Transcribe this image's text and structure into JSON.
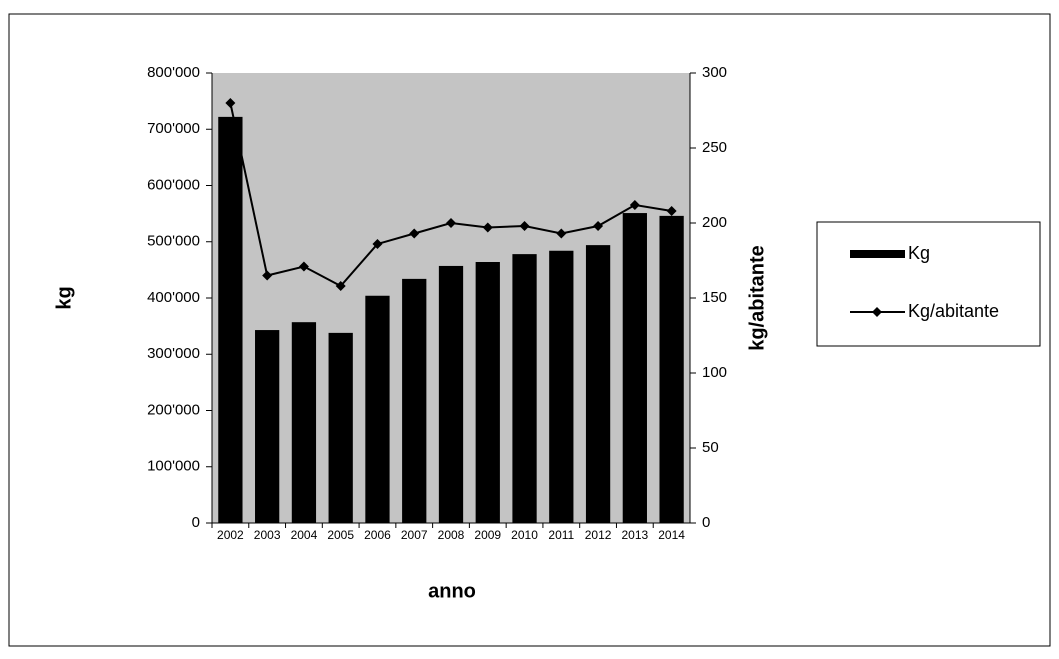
{
  "chart_data": {
    "type": "bar-line",
    "x_label": "anno",
    "y_label": "kg",
    "y2_label": "kg/abitante",
    "categories": [
      "2002",
      "2003",
      "2004",
      "2005",
      "2006",
      "2007",
      "2008",
      "2009",
      "2010",
      "2011",
      "2012",
      "2013",
      "2014"
    ],
    "series": [
      {
        "name": "Kg",
        "type": "bar",
        "color": "#000000",
        "values": [
          722000,
          343000,
          357000,
          338000,
          404000,
          434000,
          457000,
          464000,
          478000,
          484000,
          494000,
          551000,
          546000
        ]
      },
      {
        "name": "Kg/abitante",
        "type": "line",
        "axis": "y2",
        "color": "#000000",
        "values": [
          280,
          165,
          171,
          158,
          186,
          193,
          200,
          197,
          198,
          193,
          198,
          212,
          208
        ]
      }
    ],
    "ylim": [
      0,
      800000
    ],
    "yticks": [
      0,
      {
        "value": 100000,
        "label": "100'000"
      },
      {
        "value": 200000,
        "label": "200'000"
      },
      {
        "value": 300000,
        "label": "300'000"
      },
      {
        "value": 400000,
        "label": "400'000"
      },
      {
        "value": 500000,
        "label": "500'000"
      },
      {
        "value": 600000,
        "label": "600'000"
      },
      {
        "value": 700000,
        "label": "700'000"
      },
      {
        "value": 800000,
        "label": "800'000"
      }
    ],
    "y2lim": [
      0,
      300
    ],
    "y2ticks": [
      0,
      50,
      100,
      150,
      200,
      250,
      300
    ],
    "plot_background": "#c4c4c4",
    "legend": "right"
  }
}
